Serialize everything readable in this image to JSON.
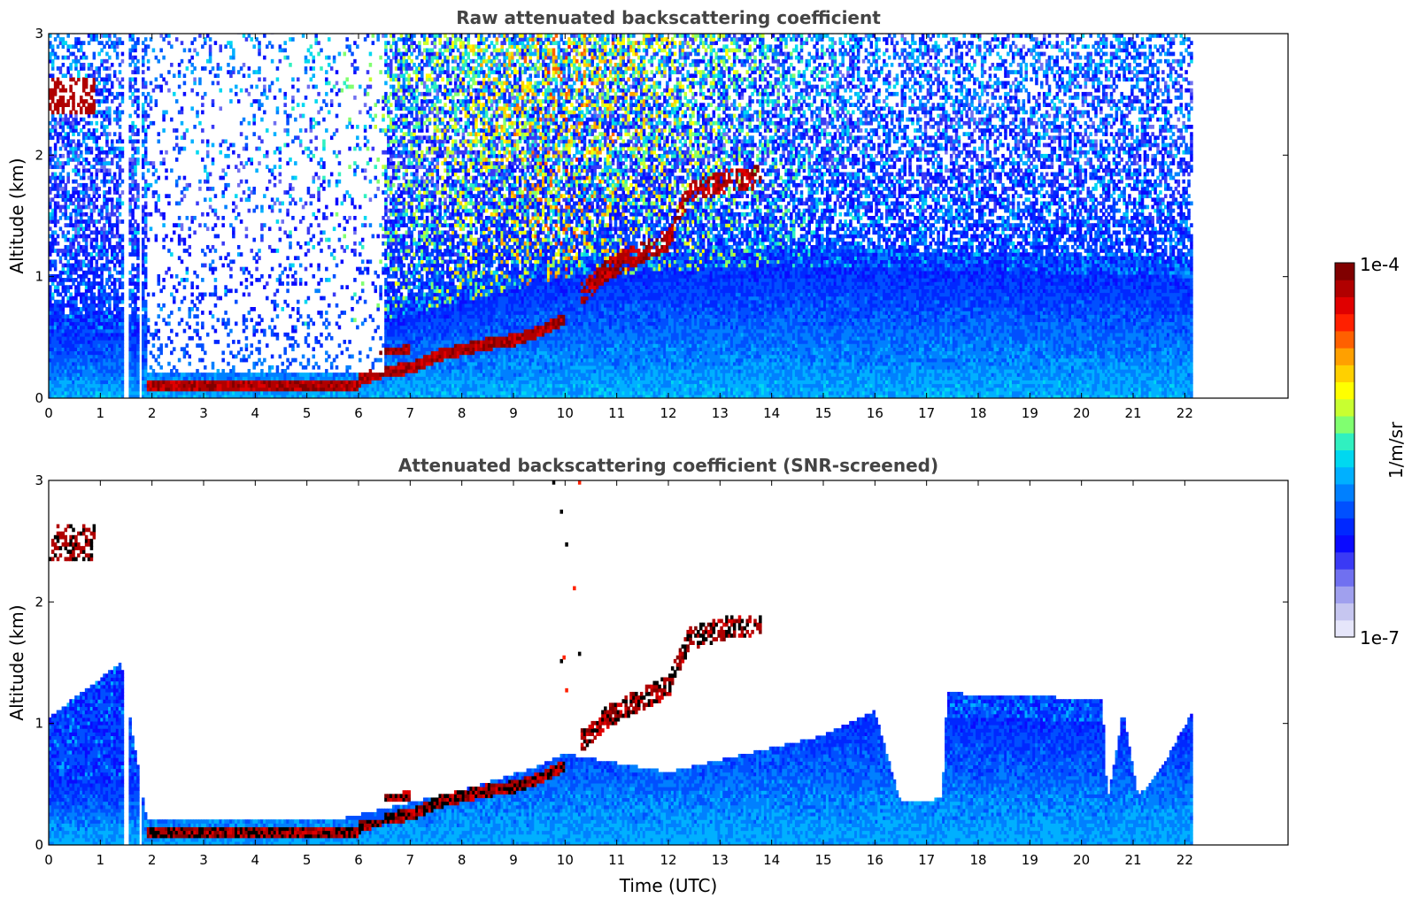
{
  "chart_data": [
    {
      "type": "heatmap",
      "title": "Raw attenuated backscattering coefficient",
      "xlabel": "",
      "ylabel": "Altitude (km)",
      "xlim": [
        0,
        24
      ],
      "ylim": [
        0,
        3
      ],
      "x_ticks": [
        0,
        1,
        2,
        3,
        4,
        5,
        6,
        7,
        8,
        9,
        10,
        11,
        12,
        13,
        14,
        15,
        16,
        17,
        18,
        19,
        20,
        21,
        22
      ],
      "y_ticks": [
        0,
        1,
        2,
        3
      ],
      "data_end_hour": 22.15,
      "gap_hours": [
        [
          1.45,
          1.55
        ],
        [
          1.73,
          1.8
        ]
      ],
      "layers": [
        {
          "kind": "surface_layer",
          "start": 1.9,
          "end": 6.0,
          "altitude_km": [
            0.09,
            0.12
          ]
        },
        {
          "kind": "rising_layer",
          "points": [
            [
              6.0,
              0.15
            ],
            [
              6.5,
              0.22
            ],
            [
              7.0,
              0.25
            ],
            [
              7.5,
              0.35
            ],
            [
              8.0,
              0.4
            ],
            [
              8.5,
              0.45
            ],
            [
              9.0,
              0.48
            ],
            [
              9.5,
              0.55
            ],
            [
              10.0,
              0.65
            ]
          ]
        },
        {
          "kind": "elevated_aerosol",
          "points": [
            [
              10.3,
              0.85
            ],
            [
              10.8,
              1.05
            ],
            [
              11.2,
              1.15
            ],
            [
              11.6,
              1.22
            ],
            [
              12.0,
              1.3
            ],
            [
              12.4,
              1.7
            ],
            [
              12.8,
              1.75
            ],
            [
              13.2,
              1.8
            ],
            [
              13.8,
              1.82
            ]
          ]
        },
        {
          "kind": "early_cloud",
          "start": 0.0,
          "end": 0.9,
          "altitude_km": [
            2.35,
            2.65
          ]
        }
      ]
    },
    {
      "type": "heatmap",
      "title": "Attenuated backscattering coefficient (SNR-screened)",
      "xlabel": "Time (UTC)",
      "ylabel": "Altitude (km)",
      "xlim": [
        0,
        24
      ],
      "ylim": [
        0,
        3
      ],
      "x_ticks": [
        0,
        1,
        2,
        3,
        4,
        5,
        6,
        7,
        8,
        9,
        10,
        11,
        12,
        13,
        14,
        15,
        16,
        17,
        18,
        19,
        20,
        21,
        22
      ],
      "y_ticks": [
        0,
        1,
        2,
        3
      ],
      "data_end_hour": 22.15,
      "screened_boundary_km": [
        [
          0.0,
          1.05
        ],
        [
          1.4,
          1.5
        ],
        [
          1.9,
          0.2
        ],
        [
          5.5,
          0.2
        ],
        [
          6.5,
          0.3
        ],
        [
          8.0,
          0.45
        ],
        [
          9.5,
          0.65
        ],
        [
          10.0,
          0.75
        ],
        [
          12.0,
          0.6
        ],
        [
          14.0,
          0.8
        ],
        [
          15.0,
          0.9
        ],
        [
          16.0,
          1.1
        ],
        [
          16.5,
          0.35
        ],
        [
          17.0,
          0.35
        ],
        [
          17.3,
          0.4
        ],
        [
          17.4,
          1.25
        ],
        [
          20.4,
          1.2
        ],
        [
          20.5,
          0.35
        ],
        [
          20.8,
          1.1
        ],
        [
          21.1,
          0.4
        ],
        [
          21.5,
          0.6
        ],
        [
          22.15,
          1.1
        ]
      ]
    }
  ],
  "colorbar": {
    "label": "1/m/sr",
    "max_label": "1e-4",
    "min_label": "1e-7",
    "colors": [
      "#e6e6fa",
      "#c6c6f0",
      "#a0a0ee",
      "#7070f0",
      "#3a3af5",
      "#0a0aff",
      "#0028ff",
      "#0050ff",
      "#0080ff",
      "#00b0ff",
      "#00d8f0",
      "#30f0c0",
      "#80ff70",
      "#c8ff30",
      "#ffff00",
      "#ffd000",
      "#ffa000",
      "#ff6000",
      "#ff2000",
      "#e00000",
      "#b00000",
      "#800000"
    ]
  }
}
